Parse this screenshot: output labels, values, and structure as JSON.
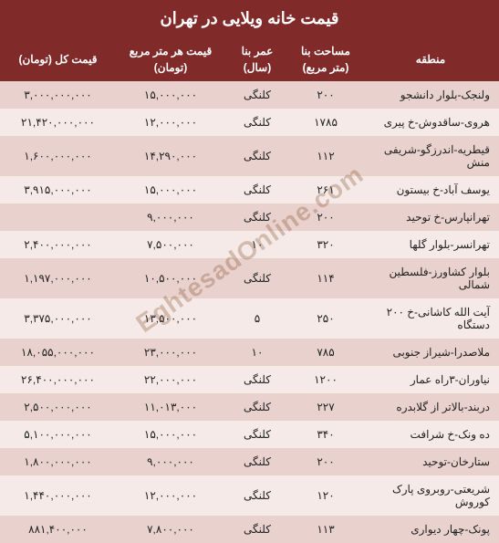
{
  "title": "قیمت خانه ویلایی در تهران",
  "watermark": "EghtesadOnline.com",
  "colors": {
    "header_bg": "#812a2a",
    "header_fg": "#ffffff",
    "row_even": "#e9d2ce",
    "row_odd": "#f6eae8",
    "text": "#222222"
  },
  "columns": [
    {
      "key": "region",
      "label_line1": "منطقه",
      "label_line2": ""
    },
    {
      "key": "area",
      "label_line1": "مساحت بنا",
      "label_line2": "(متر مربع)"
    },
    {
      "key": "age",
      "label_line1": "عمر بنا",
      "label_line2": "(سال)"
    },
    {
      "key": "ppm",
      "label_line1": "قیمت هر متر مربع",
      "label_line2": "(تومان)"
    },
    {
      "key": "total",
      "label_line1": "قیمت کل (تومان)",
      "label_line2": ""
    }
  ],
  "rows": [
    {
      "region": "ولنجک-بلوار دانشجو",
      "area": "۲۰۰",
      "age": "کلنگی",
      "ppm": "۱۵,۰۰۰,۰۰۰",
      "total": "۳,۰۰۰,۰۰۰,۰۰۰"
    },
    {
      "region": "هروی-ساقدوش-خ پیری",
      "area": "۱۷۸۵",
      "age": "کلنگی",
      "ppm": "۱۲,۰۰۰,۰۰۰",
      "total": "۲۱,۴۲۰,۰۰۰,۰۰۰"
    },
    {
      "region": "قیطریه-اندرزگو-شریفی منش",
      "area": "۱۱۲",
      "age": "کلنگی",
      "ppm": "۱۴,۲۹۰,۰۰۰",
      "total": "۱,۶۰۰,۰۰۰,۰۰۰"
    },
    {
      "region": "یوسف آباد-خ بیستون",
      "area": "۲۶۱",
      "age": "کلنگی",
      "ppm": "۱۵,۰۰۰,۰۰۰",
      "total": "۳,۹۱۵,۰۰۰,۰۰۰"
    },
    {
      "region": "تهرانپارس-خ توحید",
      "area": "۲۰۰",
      "age": "کلنگی",
      "ppm": "۹,۰۰۰,۰۰۰",
      "total": ""
    },
    {
      "region": "تهرانسر-بلوار گلها",
      "area": "۳۲۰",
      "age": "۱۰",
      "ppm": "۷,۵۰۰,۰۰۰",
      "total": "۲,۴۰۰,۰۰۰,۰۰۰"
    },
    {
      "region": "بلوار کشاورز-فلسطین شمالی",
      "area": "۱۱۴",
      "age": "کلنگی",
      "ppm": "۱۰,۵۰۰,۰۰۰",
      "total": "۱,۱۹۷,۰۰۰,۰۰۰"
    },
    {
      "region": "آیت الله کاشانی-خ ۲۰۰ دستگاه",
      "area": "۲۵۰",
      "age": "۵",
      "ppm": "۱۳,۵۰۰,۰۰۰",
      "total": "۳,۳۷۵,۰۰۰,۰۰۰"
    },
    {
      "region": "ملاصدرا-شیراز جنوبی",
      "area": "۷۸۵",
      "age": "۱۰",
      "ppm": "۲۳,۰۰۰,۰۰۰",
      "total": "۱۸,۰۵۵,۰۰۰,۰۰۰"
    },
    {
      "region": "نیاوران-۳راه عمار",
      "area": "۱۲۰۰",
      "age": "کلنگی",
      "ppm": "۲۲,۰۰۰,۰۰۰",
      "total": "۲۶,۴۰۰,۰۰۰,۰۰۰"
    },
    {
      "region": "دربند-بالاتر از گلابدره",
      "area": "۲۲۷",
      "age": "کلنگی",
      "ppm": "۱۱,۰۱۳,۰۰۰",
      "total": "۲,۵۰۰,۰۰۰,۰۰۰"
    },
    {
      "region": "ده ونک-خ شرافت",
      "area": "۳۴۰",
      "age": "کلنگی",
      "ppm": "۱۵,۰۰۰,۰۰۰",
      "total": "۵,۱۰۰,۰۰۰,۰۰۰"
    },
    {
      "region": "ستارخان-توحید",
      "area": "۲۰۰",
      "age": "کلنگی",
      "ppm": "۹,۰۰۰,۰۰۰",
      "total": "۱,۸۰۰,۰۰۰,۰۰۰"
    },
    {
      "region": "شریعتی-روبروی پارک کوروش",
      "area": "۱۲۰",
      "age": "کلنگی",
      "ppm": "۱۲,۰۰۰,۰۰۰",
      "total": "۱,۴۴۰,۰۰۰,۰۰۰"
    },
    {
      "region": "پونک-چهار دیواری",
      "area": "۱۱۳",
      "age": "کلنگی",
      "ppm": "۷,۸۰۰,۰۰۰",
      "total": "۸۸۱,۴۰۰,۰۰۰"
    }
  ]
}
